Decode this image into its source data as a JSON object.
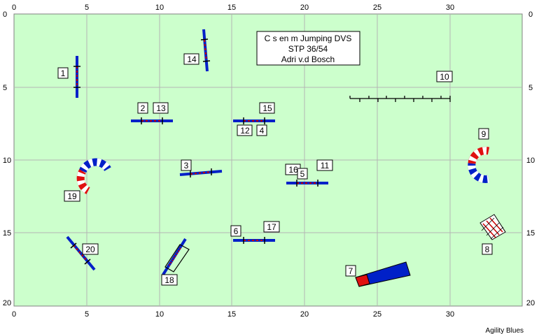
{
  "title": {
    "line1": "C s en m Jumping DVS",
    "line2": "STP 36/54",
    "line3": "Adri v.d Bosch"
  },
  "footer": "Agility Blues",
  "x_ticks": [
    "0",
    "5",
    "10",
    "15",
    "20",
    "25",
    "30"
  ],
  "y_ticks": [
    "0",
    "5",
    "10",
    "15",
    "20"
  ],
  "obstacle_numbers": [
    "1",
    "2",
    "13",
    "14",
    "15",
    "12",
    "4",
    "3",
    "16",
    "5",
    "11",
    "10",
    "9",
    "19",
    "6",
    "17",
    "20",
    "18",
    "7",
    "8"
  ],
  "colors": {
    "field": "#ccffcc",
    "grid": "#b4b4b4",
    "bar_blue": "#0020c8",
    "tunnel_red": "#e01010",
    "pole_red": "#cc0000"
  }
}
